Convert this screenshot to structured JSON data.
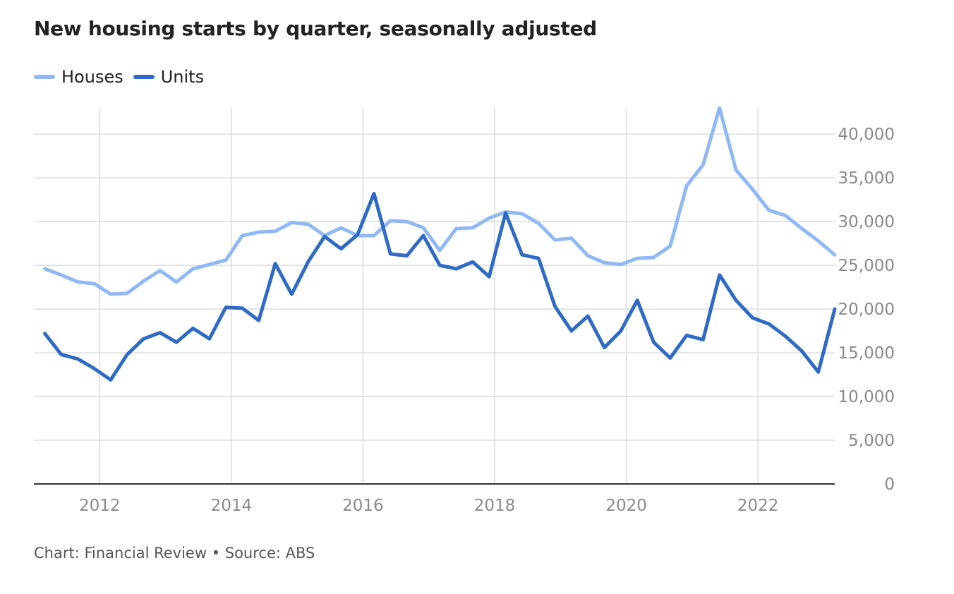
{
  "title": "New housing starts by quarter, seasonally adjusted",
  "footer": "Chart: Financial Review • Source: ABS",
  "colors": {
    "houses": "#8fb8f5",
    "units": "#2f6bc4",
    "grid": "#dcdcdc",
    "axis": "#333333"
  },
  "chart_data": {
    "type": "line",
    "title": "New housing starts by quarter, seasonally adjusted",
    "xlabel": "",
    "ylabel": "",
    "legend_position": "top-left",
    "grid": true,
    "x_ticks": [
      "2012",
      "2014",
      "2016",
      "2018",
      "2020",
      "2022"
    ],
    "y_ticks": [
      "0",
      "5,000",
      "10,000",
      "15,000",
      "20,000",
      "25,000",
      "30,000",
      "35,000",
      "40,000"
    ],
    "xlim": [
      "2011-01",
      "2023-03"
    ],
    "ylim": [
      0,
      43000
    ],
    "x": [
      "2011-03",
      "2011-06",
      "2011-09",
      "2011-12",
      "2012-03",
      "2012-06",
      "2012-09",
      "2012-12",
      "2013-03",
      "2013-06",
      "2013-09",
      "2013-12",
      "2014-03",
      "2014-06",
      "2014-09",
      "2014-12",
      "2015-03",
      "2015-06",
      "2015-09",
      "2015-12",
      "2016-03",
      "2016-06",
      "2016-09",
      "2016-12",
      "2017-03",
      "2017-06",
      "2017-09",
      "2017-12",
      "2018-03",
      "2018-06",
      "2018-09",
      "2018-12",
      "2019-03",
      "2019-06",
      "2019-09",
      "2019-12",
      "2020-03",
      "2020-06",
      "2020-09",
      "2020-12",
      "2021-03",
      "2021-06",
      "2021-09",
      "2021-12",
      "2022-03",
      "2022-06",
      "2022-09",
      "2022-12",
      "2023-03"
    ],
    "series": [
      {
        "name": "Houses",
        "color": "#8fb8f5",
        "values": [
          24600,
          23900,
          23100,
          22900,
          21700,
          21800,
          23200,
          24400,
          23100,
          24600,
          25100,
          25600,
          28400,
          28800,
          28900,
          29900,
          29700,
          28400,
          29300,
          28400,
          28400,
          30100,
          30000,
          29300,
          26700,
          29200,
          29300,
          30400,
          31100,
          30900,
          29800,
          27900,
          28100,
          26100,
          25300,
          25100,
          25800,
          25900,
          27200,
          34100,
          36500,
          43000,
          35900,
          33700,
          31300,
          30700,
          29200,
          27800,
          26200
        ]
      },
      {
        "name": "Units",
        "color": "#2f6bc4",
        "values": [
          17200,
          14800,
          14300,
          13200,
          11900,
          14800,
          16600,
          17300,
          16200,
          17800,
          16600,
          20200,
          20100,
          18700,
          25200,
          21700,
          25400,
          28300,
          26900,
          28500,
          33200,
          26300,
          26100,
          28400,
          25000,
          24600,
          25400,
          23700,
          31000,
          26200,
          25800,
          20300,
          17500,
          19200,
          15600,
          17500,
          21000,
          16200,
          14400,
          17000,
          16500,
          23900,
          21000,
          19000,
          18300,
          16900,
          15200,
          12800,
          20000
        ]
      }
    ]
  }
}
